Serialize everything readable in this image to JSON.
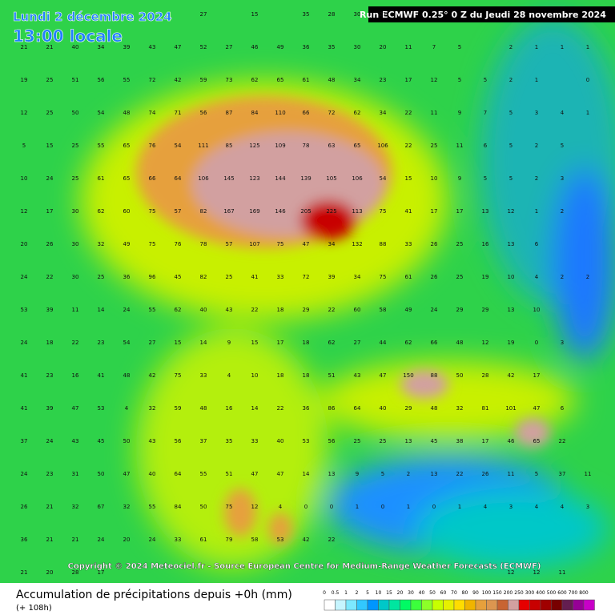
{
  "header": {
    "date": "Lundi 2 décembre 2024",
    "time": "13:00 locale",
    "run": "Run ECMWF 0.25° 0 Z du Jeudi 28 novembre 2024"
  },
  "copyright": "Copyright © 2024 Meteociel.fr - Source European Centre for Medium-Range Weather Forecasts (ECMWF)",
  "footer": {
    "title": "Accumulation de précipitations depuis +0h (mm)",
    "subtitle": "(+ 108h)"
  },
  "legend": {
    "labels": [
      "0",
      "0.5",
      "1",
      "2",
      "5",
      "10",
      "15",
      "20",
      "30",
      "40",
      "50",
      "60",
      "70",
      "80",
      "90",
      "100",
      "150",
      "200",
      "250",
      "300",
      "400",
      "500",
      "600",
      "700",
      "800"
    ],
    "colors": [
      "#ffffff",
      "#c6f5ff",
      "#7ce8ff",
      "#32c8ff",
      "#0096ff",
      "#00c8c8",
      "#00e6a0",
      "#00fa64",
      "#3cff3c",
      "#8cff28",
      "#c8ff00",
      "#e6f000",
      "#ffdc00",
      "#f0b400",
      "#e6a03c",
      "#dc9650",
      "#c86432",
      "#d2a0a0",
      "#e60000",
      "#c80000",
      "#a00000",
      "#780000",
      "#641e50",
      "#960096",
      "#c800c8"
    ]
  },
  "points": [
    [
      null,
      null,
      null,
      null,
      null,
      null,
      null,
      27,
      null,
      15,
      null,
      35,
      28,
      30,
      21,
      null,
      null,
      null,
      null,
      null,
      null,
      null,
      null
    ],
    [
      21,
      21,
      40,
      34,
      39,
      43,
      47,
      52,
      27,
      46,
      49,
      36,
      35,
      30,
      20,
      11,
      7,
      5,
      null,
      2,
      1,
      1,
      1
    ],
    [
      19,
      25,
      51,
      56,
      55,
      72,
      42,
      59,
      73,
      62,
      65,
      61,
      48,
      34,
      23,
      17,
      12,
      5,
      5,
      2,
      1,
      null,
      0
    ],
    [
      12,
      25,
      50,
      54,
      48,
      74,
      71,
      56,
      87,
      84,
      110,
      66,
      72,
      62,
      34,
      22,
      11,
      9,
      7,
      5,
      3,
      4,
      1
    ],
    [
      5,
      15,
      25,
      55,
      65,
      76,
      54,
      111,
      85,
      125,
      109,
      78,
      63,
      65,
      106,
      22,
      25,
      11,
      6,
      5,
      2,
      5,
      null
    ],
    [
      10,
      24,
      25,
      61,
      65,
      66,
      64,
      106,
      145,
      123,
      144,
      139,
      105,
      106,
      54,
      15,
      10,
      9,
      5,
      5,
      2,
      3,
      null
    ],
    [
      12,
      17,
      30,
      62,
      60,
      75,
      57,
      82,
      167,
      169,
      146,
      205,
      225,
      113,
      75,
      41,
      17,
      17,
      13,
      12,
      1,
      2,
      null
    ],
    [
      20,
      26,
      30,
      32,
      49,
      75,
      76,
      78,
      57,
      107,
      75,
      47,
      34,
      132,
      88,
      33,
      26,
      25,
      16,
      13,
      6,
      null,
      null
    ],
    [
      24,
      22,
      30,
      25,
      36,
      96,
      45,
      82,
      25,
      41,
      33,
      72,
      39,
      34,
      75,
      61,
      26,
      25,
      19,
      10,
      4,
      2,
      2
    ],
    [
      53,
      39,
      11,
      14,
      24,
      55,
      62,
      40,
      43,
      22,
      18,
      29,
      22,
      60,
      58,
      49,
      24,
      29,
      29,
      13,
      10,
      null,
      null
    ],
    [
      24,
      18,
      22,
      23,
      54,
      27,
      15,
      14,
      9,
      15,
      17,
      18,
      62,
      27,
      44,
      62,
      66,
      48,
      12,
      19,
      0,
      3,
      null
    ],
    [
      41,
      23,
      16,
      41,
      48,
      42,
      75,
      33,
      4,
      10,
      18,
      18,
      51,
      43,
      47,
      150,
      88,
      50,
      28,
      42,
      17,
      null,
      null
    ],
    [
      41,
      39,
      47,
      53,
      4,
      32,
      59,
      48,
      16,
      14,
      22,
      36,
      86,
      64,
      40,
      29,
      48,
      32,
      81,
      101,
      47,
      6,
      null
    ],
    [
      37,
      24,
      43,
      45,
      50,
      43,
      56,
      37,
      35,
      33,
      40,
      53,
      56,
      25,
      25,
      13,
      45,
      38,
      17,
      46,
      65,
      22,
      null
    ],
    [
      24,
      23,
      31,
      50,
      47,
      40,
      64,
      55,
      51,
      47,
      47,
      14,
      13,
      9,
      5,
      2,
      13,
      22,
      26,
      11,
      5,
      37,
      11
    ],
    [
      26,
      21,
      32,
      67,
      32,
      55,
      84,
      50,
      75,
      12,
      4,
      0,
      0,
      1,
      0,
      1,
      0,
      1,
      4,
      3,
      4,
      4,
      3
    ],
    [
      36,
      21,
      21,
      24,
      20,
      24,
      33,
      61,
      79,
      58,
      53,
      42,
      22,
      null,
      null,
      null,
      null,
      null,
      null,
      null,
      null,
      null,
      null
    ],
    [
      21,
      20,
      28,
      17,
      null,
      null,
      null,
      null,
      null,
      null,
      null,
      null,
      null,
      null,
      null,
      null,
      null,
      null,
      null,
      12,
      12,
      11,
      null
    ]
  ]
}
